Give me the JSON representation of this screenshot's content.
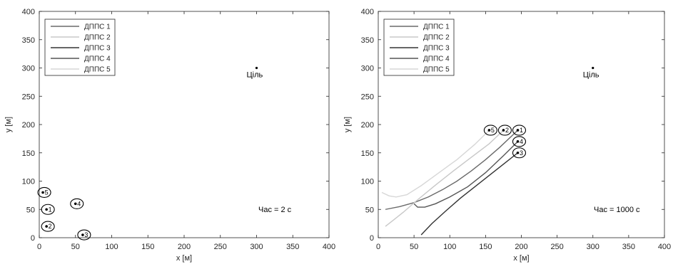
{
  "chart_data": [
    {
      "type": "line",
      "xlabel": "x [м]",
      "ylabel": "y [м]",
      "xlim": [
        0,
        400
      ],
      "ylim": [
        0,
        400
      ],
      "xticks": [
        0,
        50,
        100,
        150,
        200,
        250,
        300,
        350,
        400
      ],
      "yticks": [
        0,
        50,
        100,
        150,
        200,
        250,
        300,
        350,
        400
      ],
      "grid": false,
      "legend_position": "top-left",
      "time_label": "Час = 2 с",
      "target": {
        "label": "Ціль",
        "x": 300,
        "y": 300
      },
      "series": [
        {
          "name": "ДППС 1",
          "color": "#6a6a6a",
          "x": [
            10
          ],
          "y": [
            50
          ],
          "marker": {
            "x": 10,
            "y": 50,
            "label": "1"
          }
        },
        {
          "name": "ДППС 2",
          "color": "#c8c8c8",
          "x": [
            10
          ],
          "y": [
            20
          ],
          "marker": {
            "x": 10,
            "y": 20,
            "label": "2"
          }
        },
        {
          "name": "ДППС 3",
          "color": "#333333",
          "x": [
            60
          ],
          "y": [
            5
          ],
          "marker": {
            "x": 60,
            "y": 5,
            "label": "3"
          }
        },
        {
          "name": "ДППС 4",
          "color": "#555555",
          "x": [
            50
          ],
          "y": [
            60
          ],
          "marker": {
            "x": 50,
            "y": 60,
            "label": "4"
          }
        },
        {
          "name": "ДППС 5",
          "color": "#d7d7d7",
          "x": [
            5
          ],
          "y": [
            80
          ],
          "marker": {
            "x": 5,
            "y": 80,
            "label": "5"
          }
        }
      ]
    },
    {
      "type": "line",
      "xlabel": "x [м]",
      "ylabel": "y [м]",
      "xlim": [
        0,
        400
      ],
      "ylim": [
        0,
        400
      ],
      "xticks": [
        0,
        50,
        100,
        150,
        200,
        250,
        300,
        350,
        400
      ],
      "yticks": [
        0,
        50,
        100,
        150,
        200,
        250,
        300,
        350,
        400
      ],
      "grid": false,
      "legend_position": "top-left",
      "time_label": "Час = 1000 с",
      "target": {
        "label": "Ціль",
        "x": 300,
        "y": 300
      },
      "series": [
        {
          "name": "ДППС 1",
          "color": "#6a6a6a",
          "x": [
            10,
            30,
            50,
            70,
            90,
            110,
            130,
            150,
            170,
            195
          ],
          "y": [
            50,
            55,
            62,
            72,
            85,
            100,
            118,
            138,
            160,
            190
          ],
          "marker": {
            "x": 195,
            "y": 190,
            "label": "1"
          }
        },
        {
          "name": "ДППС 2",
          "color": "#c8c8c8",
          "x": [
            10,
            20,
            35,
            55,
            80,
            105,
            130,
            155,
            175
          ],
          "y": [
            20,
            30,
            45,
            67,
            93,
            118,
            142,
            166,
            190
          ],
          "marker": {
            "x": 175,
            "y": 190,
            "label": "2"
          }
        },
        {
          "name": "ДППС 3",
          "color": "#333333",
          "x": [
            60,
            75,
            95,
            115,
            135,
            155,
            175,
            195
          ],
          "y": [
            5,
            25,
            48,
            70,
            90,
            110,
            130,
            150
          ],
          "marker": {
            "x": 195,
            "y": 150,
            "label": "3"
          }
        },
        {
          "name": "ДППС 4",
          "color": "#555555",
          "x": [
            50,
            55,
            65,
            80,
            100,
            125,
            150,
            175,
            195
          ],
          "y": [
            60,
            54,
            54,
            60,
            72,
            90,
            115,
            145,
            170
          ],
          "marker": {
            "x": 195,
            "y": 170,
            "label": "4"
          }
        },
        {
          "name": "ДППС 5",
          "color": "#d7d7d7",
          "x": [
            5,
            15,
            25,
            40,
            60,
            85,
            110,
            135,
            155
          ],
          "y": [
            80,
            74,
            72,
            76,
            92,
            115,
            138,
            165,
            190
          ],
          "marker": {
            "x": 155,
            "y": 190,
            "label": "5"
          }
        }
      ]
    }
  ]
}
